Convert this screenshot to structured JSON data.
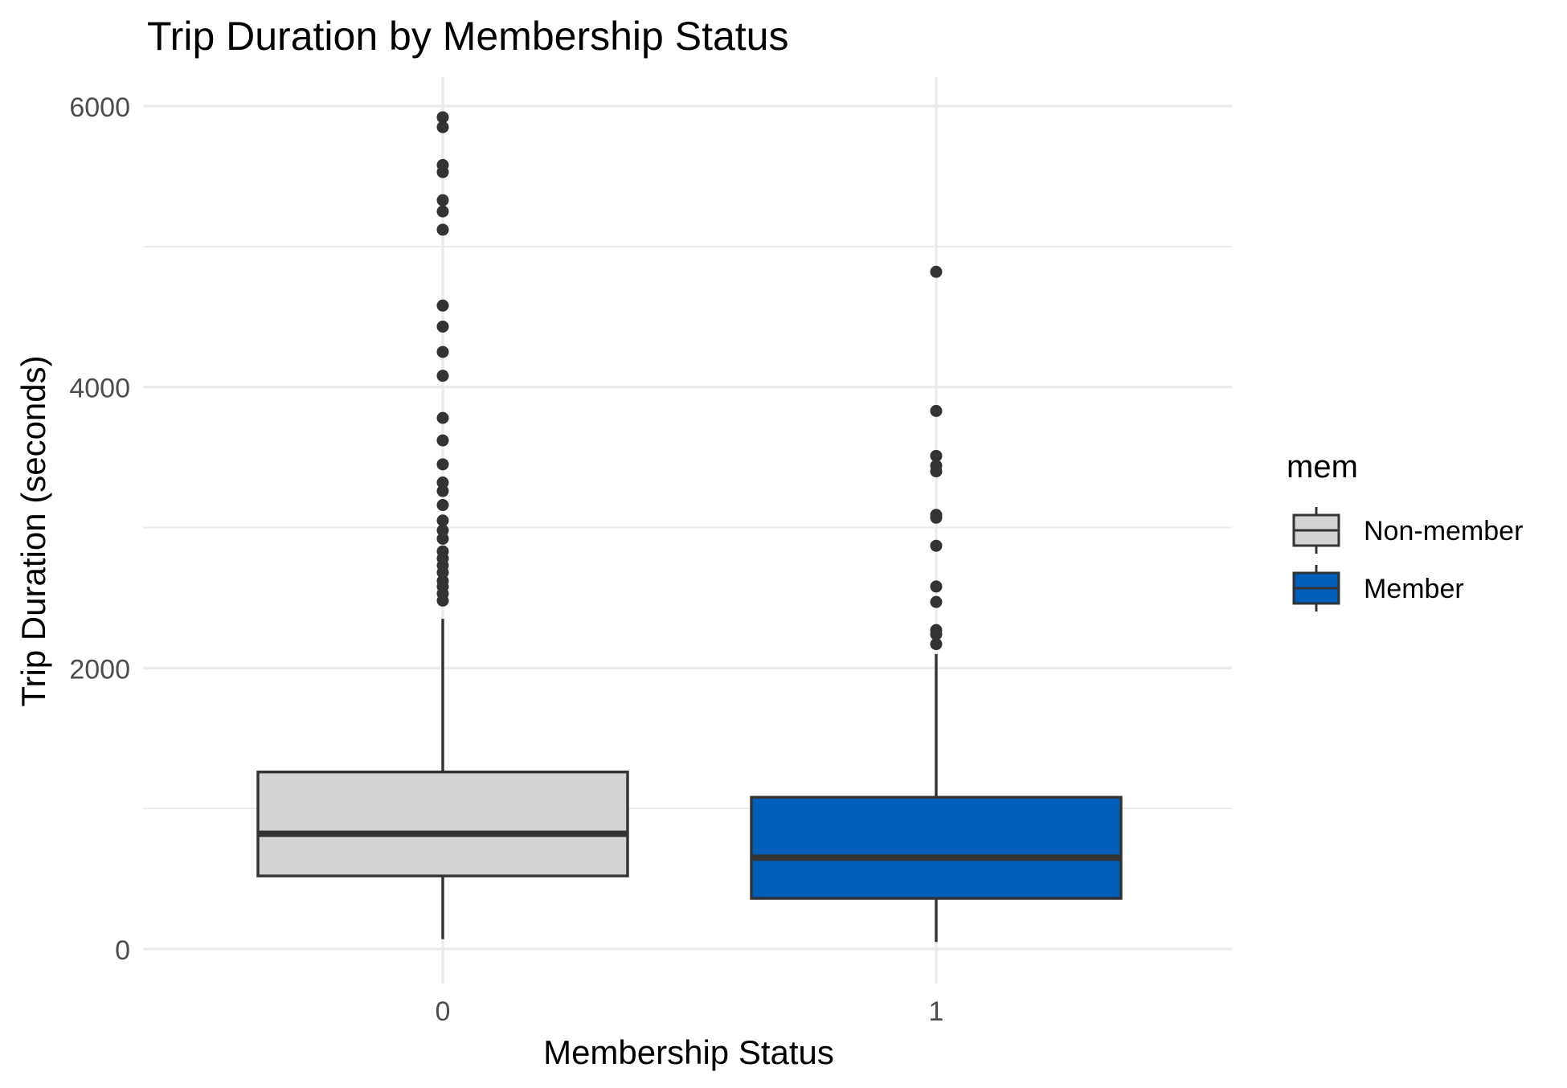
{
  "chart_data": {
    "type": "boxplot",
    "title": "Trip Duration by Membership Status",
    "xlabel": "Membership Status",
    "ylabel": "Trip Duration (seconds)",
    "ylim": [
      -250,
      6200
    ],
    "y_ticks": [
      0,
      2000,
      4000,
      6000
    ],
    "y_minor_ticks": [
      1000,
      3000,
      5000
    ],
    "grid": true,
    "legend": {
      "title": "mem",
      "placement": "right",
      "items": [
        {
          "label": "Non-member",
          "color": "#D3D3D3"
        },
        {
          "label": "Member",
          "color": "#005EB8"
        }
      ]
    },
    "categories": [
      "0",
      "1"
    ],
    "series": [
      {
        "name": "Non-member",
        "category": "0",
        "color": "#D3D3D3",
        "whisker_low": 70,
        "q1": 520,
        "median": 820,
        "q3": 1260,
        "whisker_high": 2350,
        "outliers": [
          2480,
          2530,
          2580,
          2620,
          2680,
          2730,
          2780,
          2830,
          2920,
          2980,
          3050,
          3160,
          3260,
          3320,
          3450,
          3620,
          3780,
          4080,
          4250,
          4430,
          4580,
          5120,
          5250,
          5330,
          5530,
          5580,
          5850,
          5920
        ]
      },
      {
        "name": "Member",
        "category": "1",
        "color": "#005EB8",
        "whisker_low": 50,
        "q1": 360,
        "median": 650,
        "q3": 1080,
        "whisker_high": 2100,
        "outliers": [
          2170,
          2240,
          2270,
          2470,
          2580,
          2870,
          3070,
          3090,
          3400,
          3440,
          3510,
          3830,
          4820
        ]
      }
    ],
    "colors": {
      "grid": "#EBEBEB",
      "outline": "#333333",
      "axis_text": "#4D4D4D",
      "text": "#000000"
    }
  }
}
